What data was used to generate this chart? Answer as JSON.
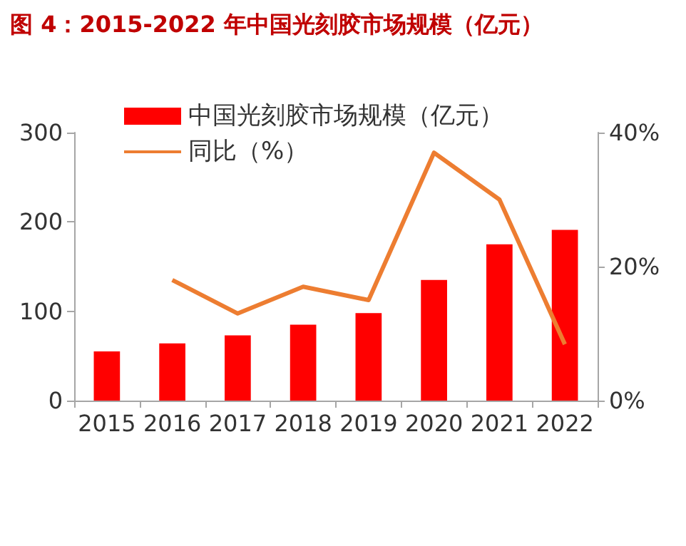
{
  "chart_data": {
    "type": "bar",
    "title": "图 4：2015-2022 年中国光刻胶市场规模（亿元）",
    "categories": [
      "2015",
      "2016",
      "2017",
      "2018",
      "2019",
      "2020",
      "2021",
      "2022"
    ],
    "series": [
      {
        "name": "中国光刻胶市场规模（亿元）",
        "color": "#ff0000",
        "values": [
          55,
          64,
          73,
          85,
          98,
          135,
          175,
          191
        ]
      },
      {
        "name": "同比（%）",
        "type": "line",
        "axis": "y2",
        "color": "#ed7d31",
        "values": [
          null,
          18,
          13,
          17,
          15,
          37,
          30,
          8.4
        ]
      }
    ],
    "ylim": [
      0,
      300
    ],
    "yticks": [
      0,
      100,
      200,
      300
    ],
    "y2lim": [
      0,
      40
    ],
    "y2ticks": [
      {
        "value": 0,
        "label": "0%"
      },
      {
        "value": 20,
        "label": "20%"
      },
      {
        "value": 40,
        "label": "40%"
      }
    ],
    "legend": "top left",
    "grid": false,
    "marker": "none"
  }
}
